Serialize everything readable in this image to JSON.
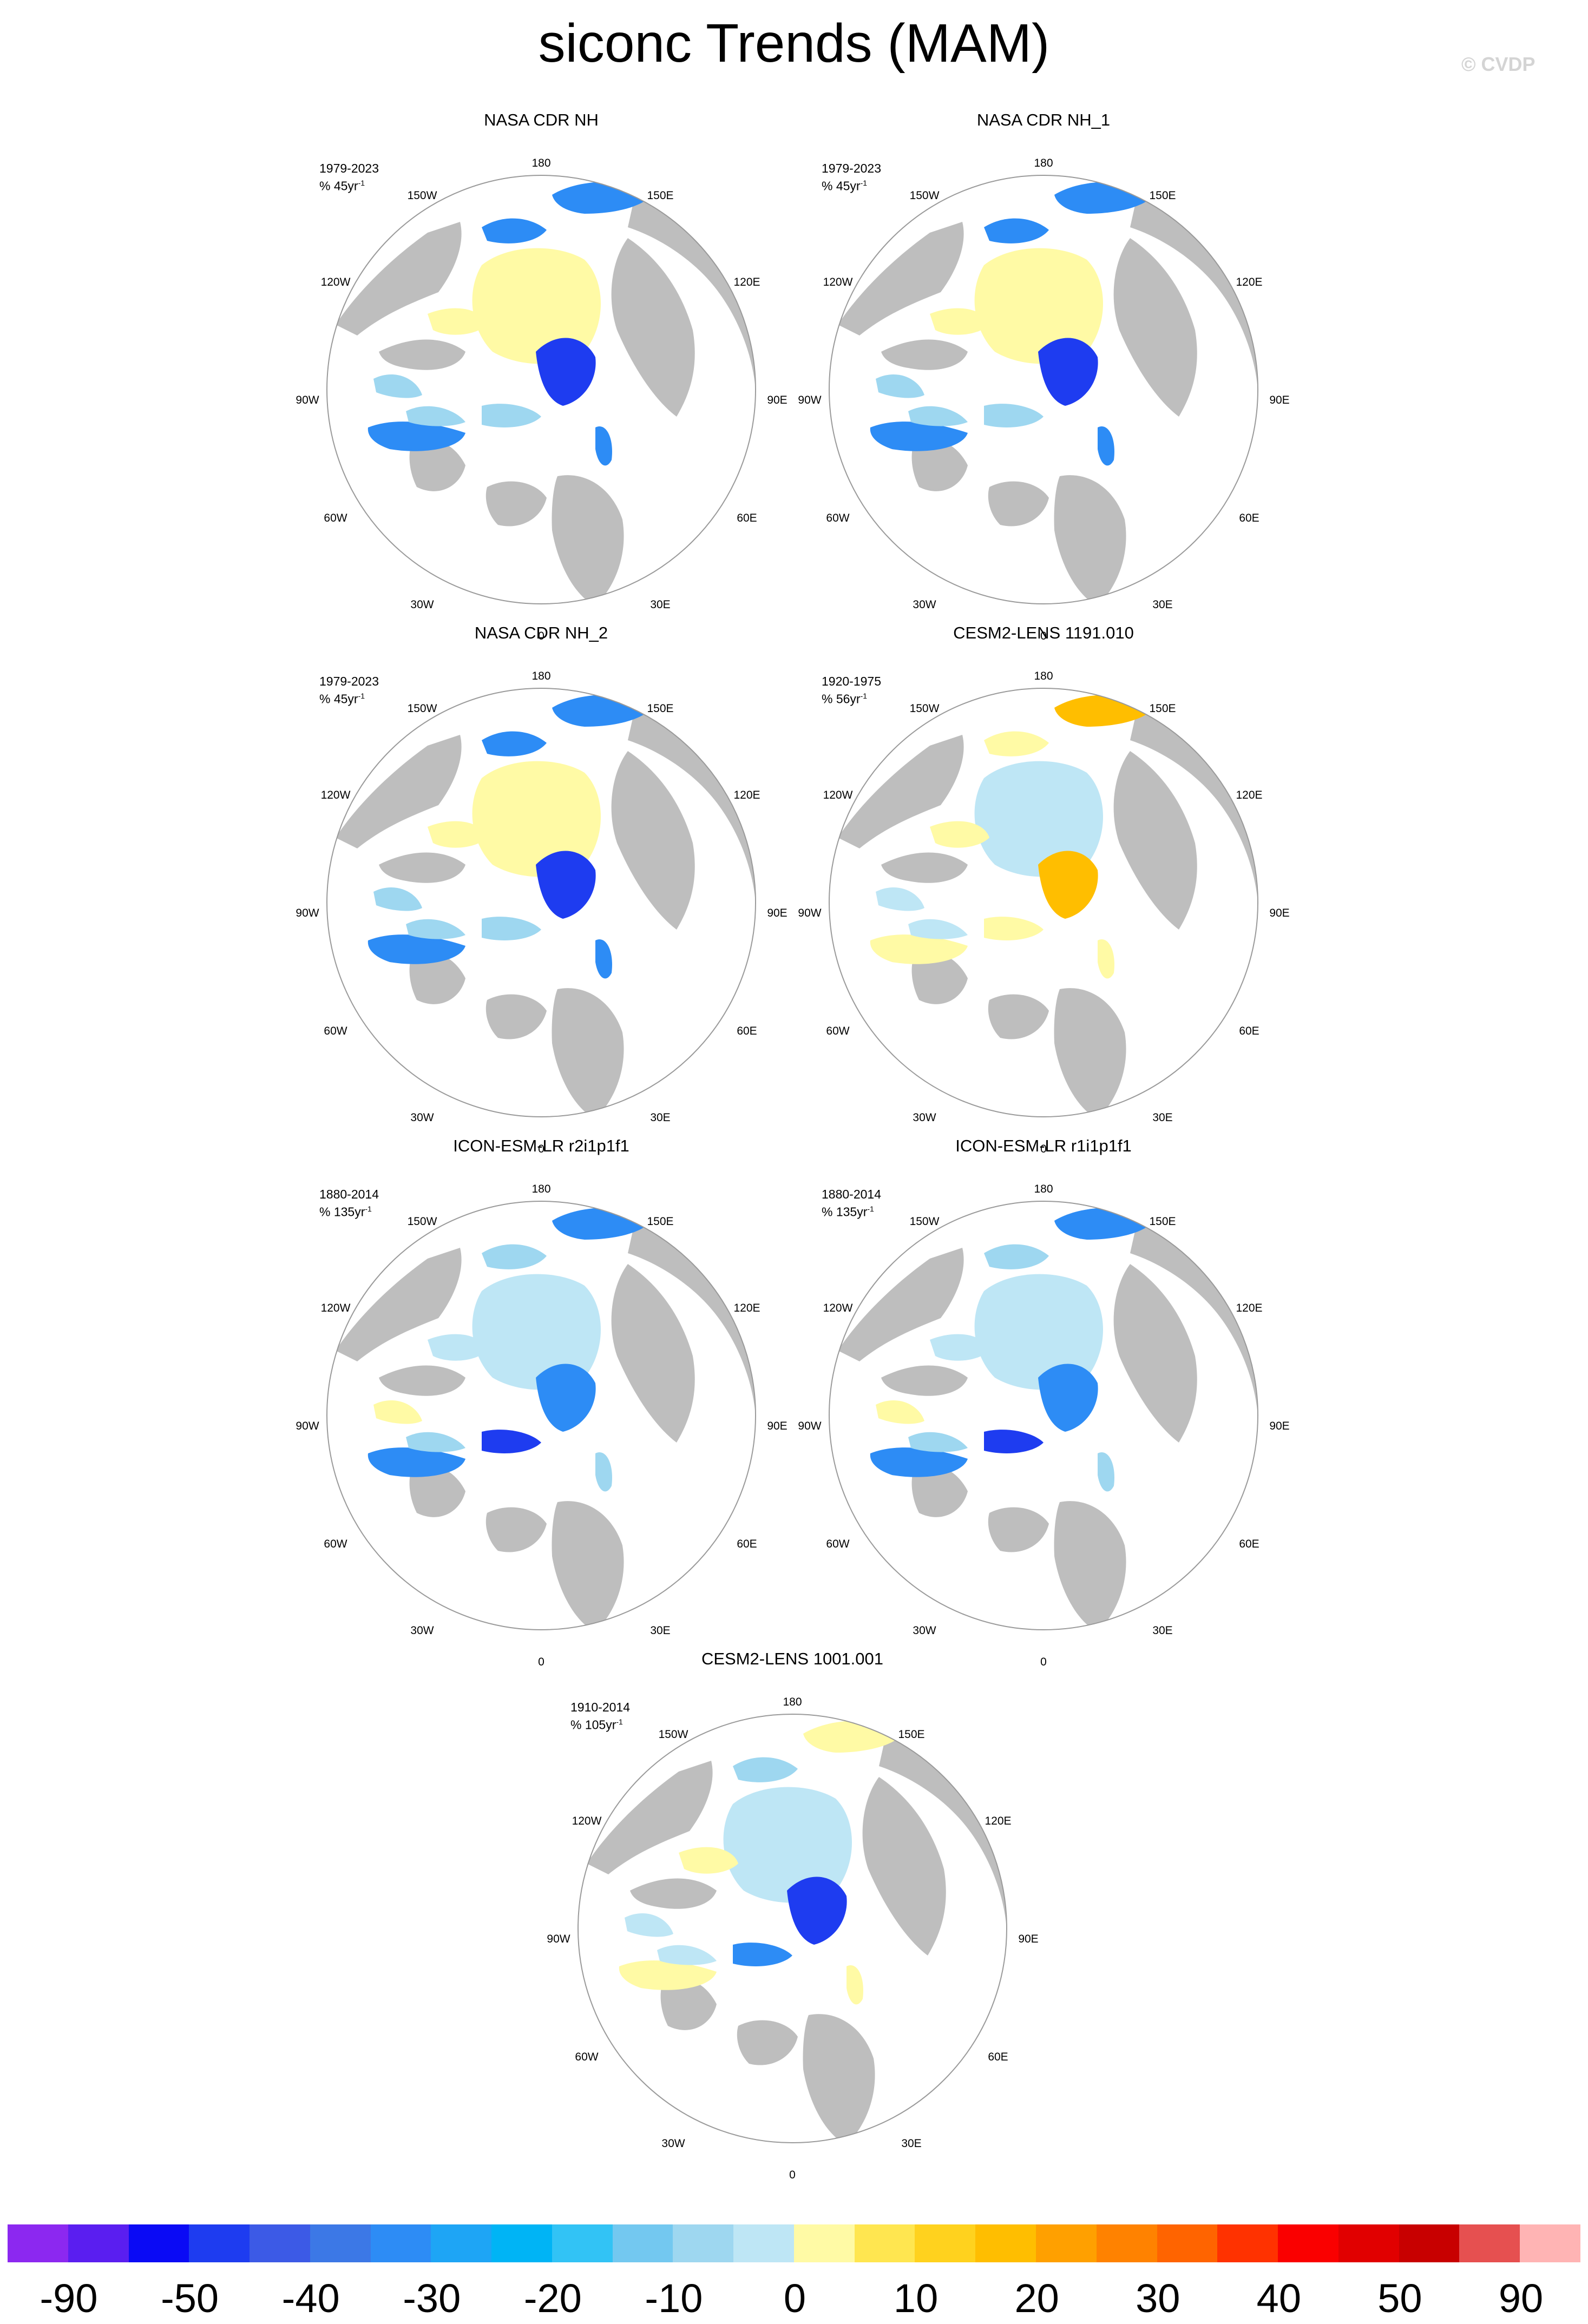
{
  "title": "siconc Trends (MAM)",
  "copyright": "© CVDP",
  "lon_labels": {
    "n180": "180",
    "n150w": "150W",
    "n150e": "150E",
    "n120w": "120W",
    "n120e": "120E",
    "n90w": "90W",
    "n90e": "90E",
    "n60w": "60W",
    "n60e": "60E",
    "n30w": "30W",
    "n30e": "30E",
    "n0": "0"
  },
  "panels": [
    {
      "title": "NASA CDR NH",
      "period": "1979-2023",
      "trend_units": "% 45yr",
      "trend_exp": "-1",
      "style": "obs"
    },
    {
      "title": "NASA CDR NH_1",
      "period": "1979-2023",
      "trend_units": "% 45yr",
      "trend_exp": "-1",
      "style": "obs"
    },
    {
      "title": "NASA CDR NH_2",
      "period": "1979-2023",
      "trend_units": "% 45yr",
      "trend_exp": "-1",
      "style": "obs"
    },
    {
      "title": "CESM2-LENS 1191.010",
      "period": "1920-1975",
      "trend_units": "% 56yr",
      "trend_exp": "-1",
      "style": "cesm_pos"
    },
    {
      "title": "ICON-ESM-LR r2i1p1f1",
      "period": "1880-2014",
      "trend_units": "% 135yr",
      "trend_exp": "-1",
      "style": "icon"
    },
    {
      "title": "ICON-ESM-LR r1i1p1f1",
      "period": "1880-2014",
      "trend_units": "% 135yr",
      "trend_exp": "-1",
      "style": "icon"
    },
    {
      "title": "CESM2-LENS 1001.001",
      "period": "1910-2014",
      "trend_units": "% 105yr",
      "trend_exp": "-1",
      "style": "cesm_mix"
    }
  ],
  "colorbar": {
    "colors": [
      "#8c28f0",
      "#5a1ef0",
      "#0a0af5",
      "#1e3cf0",
      "#3c5ae6",
      "#3c78e6",
      "#2d8cf5",
      "#1ea5f5",
      "#00b4f5",
      "#32c3f5",
      "#73c8f0",
      "#9ed7f0",
      "#bee6f5",
      "#fffaa5",
      "#ffe650",
      "#ffd21e",
      "#ffbe00",
      "#ffa000",
      "#ff8200",
      "#ff6400",
      "#ff3200",
      "#fa0000",
      "#e10000",
      "#c80000",
      "#e65050",
      "#ffb4b4"
    ],
    "labels": [
      "-90",
      "-50",
      "-40",
      "-30",
      "-20",
      "-10",
      "0",
      "10",
      "20",
      "30",
      "40",
      "50",
      "90"
    ]
  },
  "colors": {
    "land": "#bebebe",
    "ice_neutral": "#bee6f5",
    "pos_small": "#fffaa5",
    "neg_small": "#9ed7f0",
    "neg_mid": "#2d8cf5",
    "neg_strong": "#1e3cf0",
    "pos_mid": "#ffbe00",
    "pos_strong": "#ff6400"
  }
}
